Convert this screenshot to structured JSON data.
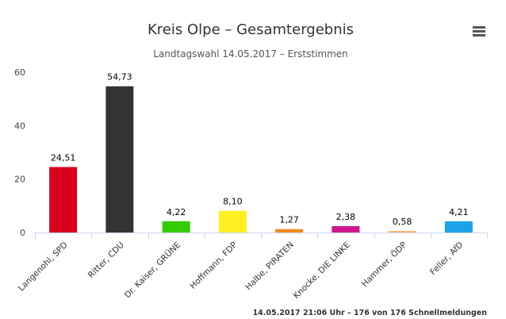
{
  "chart_data": {
    "type": "bar",
    "title": "Kreis Olpe – Gesamtergebnis",
    "subtitle": "Landtagswahl 14.05.2017 – Erststimmen",
    "categories": [
      "Langenohl, SPD",
      "Ritter, CDU",
      "Dr. Kaiser, GRÜNE",
      "Hoffmann, FDP",
      "Halbe, PIRATEN",
      "Knocke, DIE LINKE",
      "Hammer, ÖDP",
      "Feller, AfD"
    ],
    "values": [
      24.51,
      54.73,
      4.22,
      8.1,
      1.27,
      2.38,
      0.58,
      4.21
    ],
    "value_labels": [
      "24,51",
      "54,73",
      "4,22",
      "8,10",
      "1,27",
      "2,38",
      "0,58",
      "4,21"
    ],
    "colors": [
      "#d7001e",
      "#333333",
      "#33cc00",
      "#ffee22",
      "#f08a1e",
      "#cc1a8c",
      "#ffb56b",
      "#1aa3e6"
    ],
    "yticks": [
      0,
      20,
      40,
      60
    ],
    "ylim": [
      0,
      60
    ],
    "grid": false,
    "credits": "14.05.2017 21:06 Uhr – 176 von 176 Schnellmeldungen"
  },
  "menu": {
    "icon": "hamburger-menu-icon"
  }
}
